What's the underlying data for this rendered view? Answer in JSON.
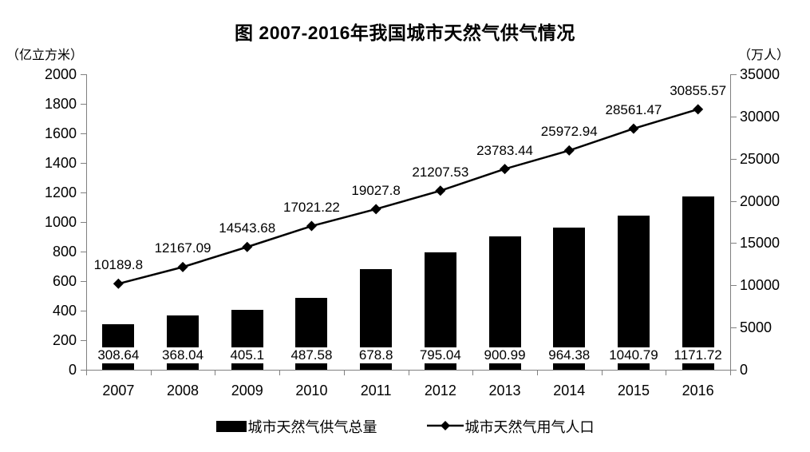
{
  "chart_data": {
    "type": "combo",
    "title": "图 2007-2016年我国城市天然气供气情况",
    "categories": [
      "2007",
      "2008",
      "2009",
      "2010",
      "2011",
      "2012",
      "2013",
      "2014",
      "2015",
      "2016"
    ],
    "series": [
      {
        "name": "城市天然气供气总量",
        "type": "bar",
        "axis": "left",
        "values": [
          308.64,
          368.04,
          405.1,
          487.58,
          678.8,
          795.04,
          900.99,
          964.38,
          1040.79,
          1171.72
        ]
      },
      {
        "name": "城市天然气用气人口",
        "type": "line",
        "axis": "right",
        "values": [
          10189.8,
          12167.09,
          14543.68,
          17021.22,
          19027.8,
          21207.53,
          23783.44,
          25972.94,
          28561.47,
          30855.57
        ]
      }
    ],
    "left_axis": {
      "label": "（亿立方米）",
      "min": 0,
      "max": 2000,
      "step": 200
    },
    "right_axis": {
      "label": "（万人）",
      "min": 0,
      "max": 35000,
      "step": 5000
    },
    "legend_position": "bottom",
    "grid": false,
    "data_labels": true,
    "colors": {
      "bar": "#000000",
      "line": "#000000",
      "marker": "#000000",
      "axis": "#808080",
      "background": "#ffffff",
      "text": "#000000"
    }
  }
}
